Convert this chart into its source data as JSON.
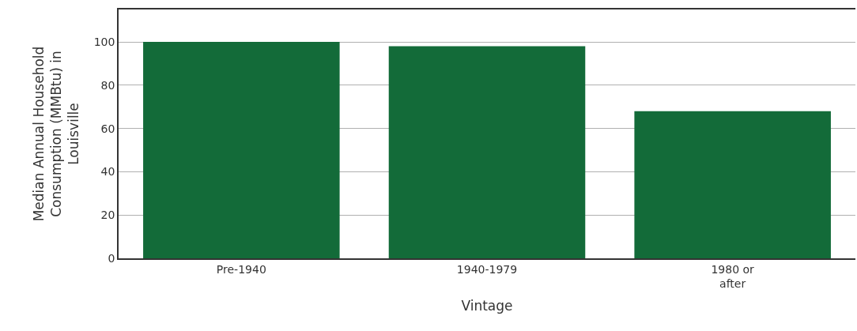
{
  "chart_data": {
    "type": "bar",
    "xlabel": "Vintage",
    "ylabel": "Median Annual Household\nConsumption (MMBtu) in\nLouisville",
    "categories": [
      "Pre-1940",
      "1940-1979",
      "1980 or\nafter"
    ],
    "values": [
      100,
      98,
      68
    ],
    "color": "#136b39",
    "ylim": [
      0,
      115
    ],
    "yticks": [
      0,
      20,
      40,
      60,
      80,
      100
    ],
    "grid": "y"
  }
}
